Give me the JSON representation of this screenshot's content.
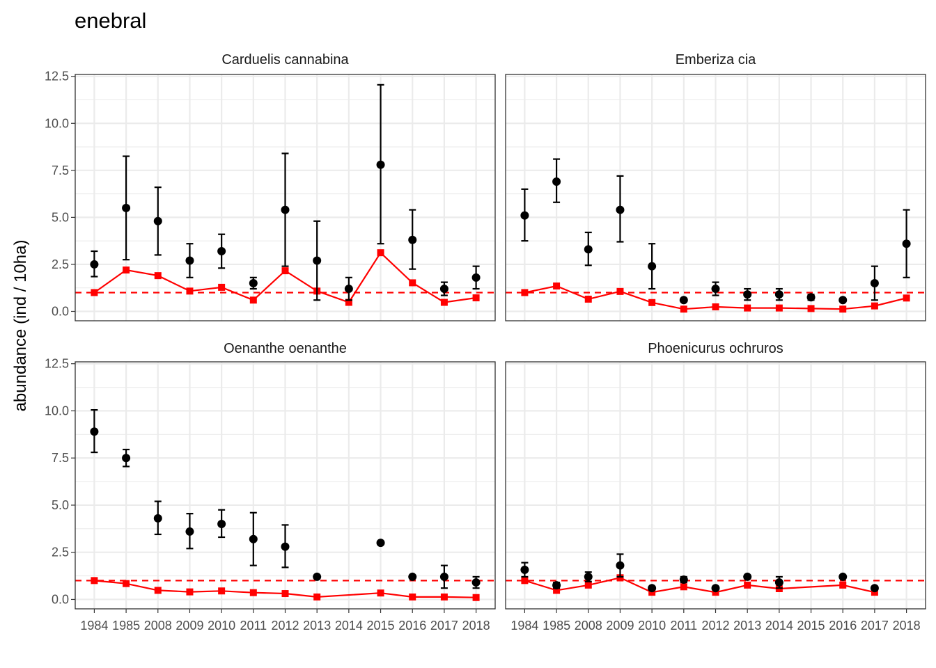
{
  "chart_data": {
    "type": "scatter",
    "title": "enebral",
    "ylabel": "abundance (ind / 10ha)",
    "xlabel": "",
    "ylim": [
      -0.5,
      12.6
    ],
    "yticks": [
      0.0,
      2.5,
      5.0,
      7.5,
      10.0,
      12.5
    ],
    "ytick_labels": [
      "0.0",
      "2.5",
      "5.0",
      "7.5",
      "10.0",
      "12.5"
    ],
    "categories": [
      "1984",
      "1985",
      "2008",
      "2009",
      "2010",
      "2011",
      "2012",
      "2013",
      "2014",
      "2015",
      "2016",
      "2017",
      "2018"
    ],
    "reference_line": 1.0,
    "grid": true,
    "colors": {
      "observed": "#000000",
      "index": "#ff0000",
      "reference": "#ff0000",
      "grid": "#ebebeb",
      "panel_border": "#333333"
    },
    "facets": [
      {
        "name": "Carduelis cannabina",
        "observed": [
          {
            "x": "1984",
            "y": 2.5,
            "lo": 1.85,
            "hi": 3.2
          },
          {
            "x": "1985",
            "y": 5.5,
            "lo": 2.75,
            "hi": 8.25
          },
          {
            "x": "2008",
            "y": 4.8,
            "lo": 3.0,
            "hi": 6.6
          },
          {
            "x": "2009",
            "y": 2.7,
            "lo": 1.8,
            "hi": 3.6
          },
          {
            "x": "2010",
            "y": 3.2,
            "lo": 2.3,
            "hi": 4.1
          },
          {
            "x": "2011",
            "y": 1.5,
            "lo": 1.2,
            "hi": 1.8
          },
          {
            "x": "2012",
            "y": 5.4,
            "lo": 2.4,
            "hi": 8.4
          },
          {
            "x": "2013",
            "y": 2.7,
            "lo": 0.6,
            "hi": 4.8
          },
          {
            "x": "2014",
            "y": 1.2,
            "lo": 0.6,
            "hi": 1.8
          },
          {
            "x": "2015",
            "y": 7.8,
            "lo": 3.6,
            "hi": 12.05
          },
          {
            "x": "2016",
            "y": 3.8,
            "lo": 2.25,
            "hi": 5.4
          },
          {
            "x": "2017",
            "y": 1.2,
            "lo": 0.85,
            "hi": 1.55
          },
          {
            "x": "2018",
            "y": 1.8,
            "lo": 1.2,
            "hi": 2.4
          }
        ],
        "index": [
          {
            "x": "1984",
            "y": 1.0
          },
          {
            "x": "1985",
            "y": 2.2
          },
          {
            "x": "2008",
            "y": 1.9
          },
          {
            "x": "2009",
            "y": 1.08
          },
          {
            "x": "2010",
            "y": 1.28
          },
          {
            "x": "2011",
            "y": 0.6
          },
          {
            "x": "2012",
            "y": 2.16
          },
          {
            "x": "2013",
            "y": 1.08
          },
          {
            "x": "2014",
            "y": 0.48
          },
          {
            "x": "2015",
            "y": 3.12
          },
          {
            "x": "2016",
            "y": 1.52
          },
          {
            "x": "2017",
            "y": 0.48
          },
          {
            "x": "2018",
            "y": 0.72
          }
        ]
      },
      {
        "name": "Emberiza cia",
        "observed": [
          {
            "x": "1984",
            "y": 5.1,
            "lo": 3.75,
            "hi": 6.5
          },
          {
            "x": "1985",
            "y": 6.9,
            "lo": 5.8,
            "hi": 8.1
          },
          {
            "x": "2008",
            "y": 3.3,
            "lo": 2.45,
            "hi": 4.2
          },
          {
            "x": "2009",
            "y": 5.4,
            "lo": 3.7,
            "hi": 7.2
          },
          {
            "x": "2010",
            "y": 2.4,
            "lo": 1.2,
            "hi": 3.6
          },
          {
            "x": "2011",
            "y": 0.6
          },
          {
            "x": "2012",
            "y": 1.2,
            "lo": 0.85,
            "hi": 1.55
          },
          {
            "x": "2013",
            "y": 0.9,
            "lo": 0.6,
            "hi": 1.2
          },
          {
            "x": "2014",
            "y": 0.9,
            "lo": 0.6,
            "hi": 1.2
          },
          {
            "x": "2015",
            "y": 0.75,
            "lo": 0.6,
            "hi": 0.9
          },
          {
            "x": "2016",
            "y": 0.6
          },
          {
            "x": "2017",
            "y": 1.5,
            "lo": 0.6,
            "hi": 2.4
          },
          {
            "x": "2018",
            "y": 3.6,
            "lo": 1.8,
            "hi": 5.4
          }
        ],
        "index": [
          {
            "x": "1984",
            "y": 1.0
          },
          {
            "x": "1985",
            "y": 1.35
          },
          {
            "x": "2008",
            "y": 0.65
          },
          {
            "x": "2009",
            "y": 1.06
          },
          {
            "x": "2010",
            "y": 0.47
          },
          {
            "x": "2011",
            "y": 0.12
          },
          {
            "x": "2012",
            "y": 0.24
          },
          {
            "x": "2013",
            "y": 0.18
          },
          {
            "x": "2014",
            "y": 0.18
          },
          {
            "x": "2015",
            "y": 0.15
          },
          {
            "x": "2016",
            "y": 0.12
          },
          {
            "x": "2017",
            "y": 0.29
          },
          {
            "x": "2018",
            "y": 0.71
          }
        ]
      },
      {
        "name": "Oenanthe oenanthe",
        "observed": [
          {
            "x": "1984",
            "y": 8.9,
            "lo": 7.8,
            "hi": 10.05
          },
          {
            "x": "1985",
            "y": 7.5,
            "lo": 7.05,
            "hi": 7.95
          },
          {
            "x": "2008",
            "y": 4.3,
            "lo": 3.45,
            "hi": 5.2
          },
          {
            "x": "2009",
            "y": 3.6,
            "lo": 2.7,
            "hi": 4.55
          },
          {
            "x": "2010",
            "y": 4.0,
            "lo": 3.3,
            "hi": 4.75
          },
          {
            "x": "2011",
            "y": 3.2,
            "lo": 1.8,
            "hi": 4.6
          },
          {
            "x": "2012",
            "y": 2.8,
            "lo": 1.7,
            "hi": 3.95
          },
          {
            "x": "2013",
            "y": 1.2
          },
          {
            "x": "2015",
            "y": 3.0
          },
          {
            "x": "2016",
            "y": 1.2
          },
          {
            "x": "2017",
            "y": 1.2,
            "lo": 0.6,
            "hi": 1.8
          },
          {
            "x": "2018",
            "y": 0.9,
            "lo": 0.6,
            "hi": 1.2
          }
        ],
        "index": [
          {
            "x": "1984",
            "y": 1.0
          },
          {
            "x": "1985",
            "y": 0.84
          },
          {
            "x": "2008",
            "y": 0.48
          },
          {
            "x": "2009",
            "y": 0.4
          },
          {
            "x": "2010",
            "y": 0.45
          },
          {
            "x": "2011",
            "y": 0.36
          },
          {
            "x": "2012",
            "y": 0.31
          },
          {
            "x": "2013",
            "y": 0.13
          },
          {
            "x": "2015",
            "y": 0.34
          },
          {
            "x": "2016",
            "y": 0.13
          },
          {
            "x": "2017",
            "y": 0.13
          },
          {
            "x": "2018",
            "y": 0.1
          }
        ]
      },
      {
        "name": "Phoenicurus ochruros",
        "observed": [
          {
            "x": "1984",
            "y": 1.57,
            "lo": 1.2,
            "hi": 1.95
          },
          {
            "x": "1985",
            "y": 0.75,
            "lo": 0.6,
            "hi": 0.9
          },
          {
            "x": "2008",
            "y": 1.2,
            "lo": 0.95,
            "hi": 1.45
          },
          {
            "x": "2009",
            "y": 1.8,
            "lo": 1.2,
            "hi": 2.4
          },
          {
            "x": "2010",
            "y": 0.6
          },
          {
            "x": "2011",
            "y": 1.05,
            "lo": 0.9,
            "hi": 1.2
          },
          {
            "x": "2012",
            "y": 0.6
          },
          {
            "x": "2013",
            "y": 1.2
          },
          {
            "x": "2014",
            "y": 0.9,
            "lo": 0.6,
            "hi": 1.2
          },
          {
            "x": "2016",
            "y": 1.2
          },
          {
            "x": "2017",
            "y": 0.6
          }
        ],
        "index": [
          {
            "x": "1984",
            "y": 1.0
          },
          {
            "x": "1985",
            "y": 0.48
          },
          {
            "x": "2008",
            "y": 0.76
          },
          {
            "x": "2009",
            "y": 1.15
          },
          {
            "x": "2010",
            "y": 0.38
          },
          {
            "x": "2011",
            "y": 0.67
          },
          {
            "x": "2012",
            "y": 0.38
          },
          {
            "x": "2013",
            "y": 0.76
          },
          {
            "x": "2014",
            "y": 0.57
          },
          {
            "x": "2016",
            "y": 0.76
          },
          {
            "x": "2017",
            "y": 0.38
          }
        ]
      }
    ]
  }
}
